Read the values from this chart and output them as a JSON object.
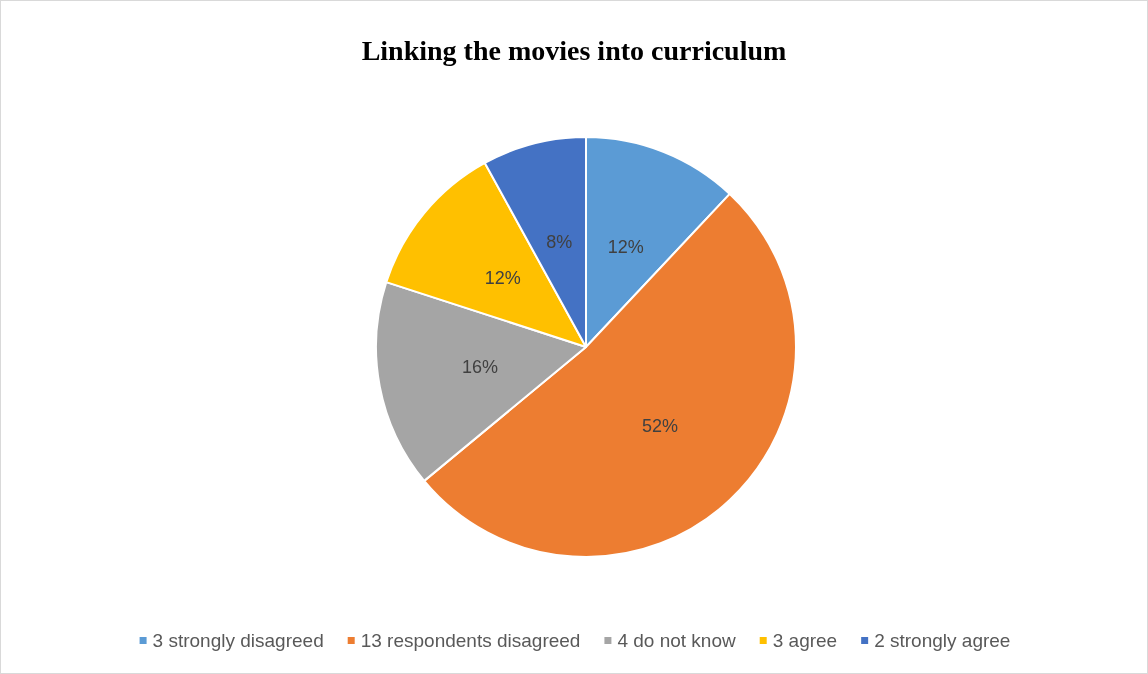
{
  "chart_data": {
    "type": "pie",
    "title": "Linking the movies into curriculum",
    "categories": [
      "3 strongly disagreed",
      "13 respondents disagreed",
      "4 do not know",
      "3 agree",
      "2 strongly agree"
    ],
    "values": [
      12,
      52,
      16,
      12,
      8
    ],
    "colors": [
      "#5b9bd5",
      "#ed7d31",
      "#a5a5a5",
      "#ffc000",
      "#4472c4"
    ],
    "value_labels": [
      "12%",
      "52%",
      "16%",
      "12%",
      "8%"
    ],
    "legend": "bottom"
  }
}
